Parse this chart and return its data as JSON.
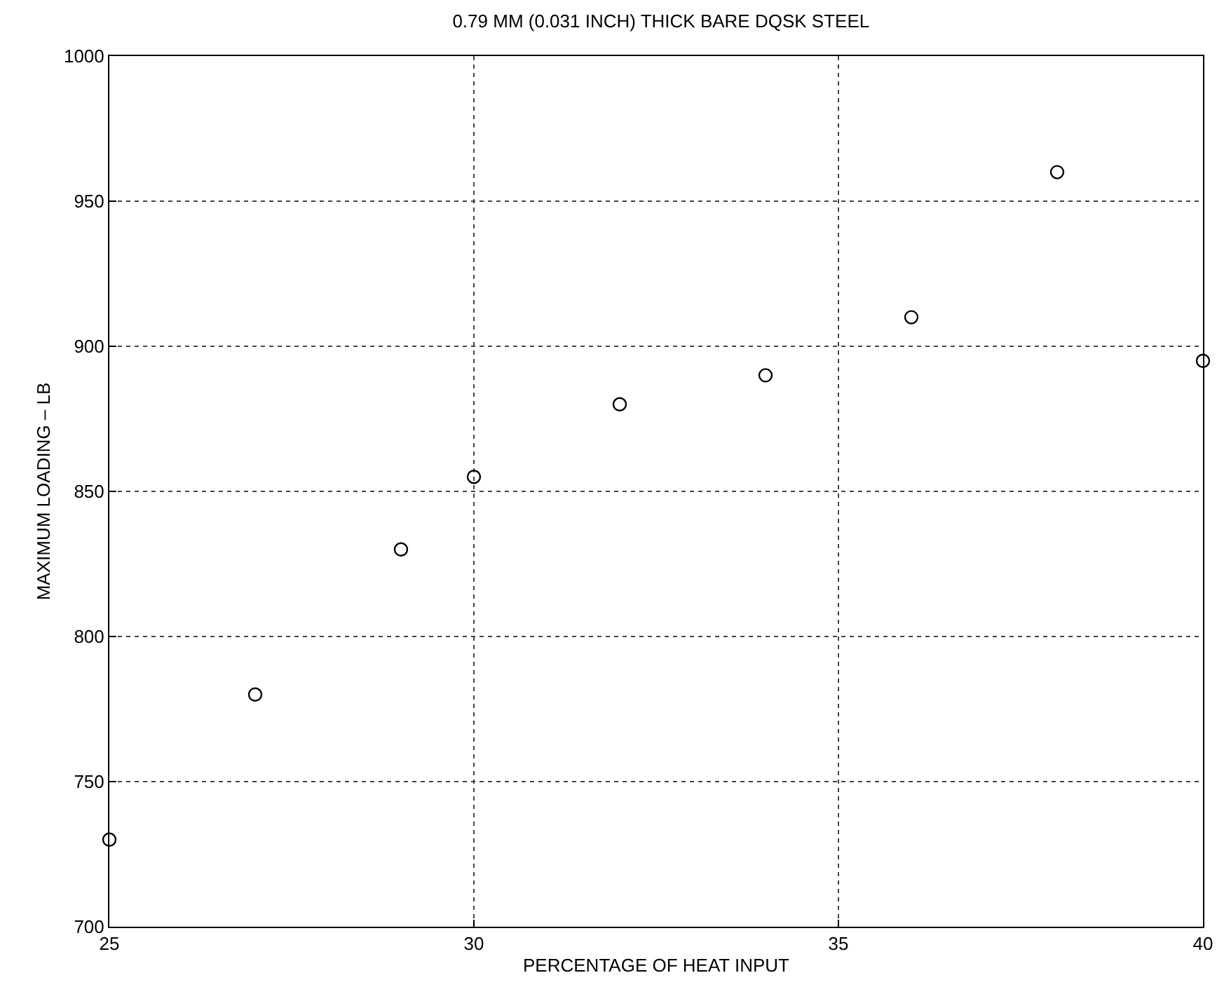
{
  "chart_data": {
    "type": "scatter",
    "title": "0.79 MM (0.031 INCH) THICK BARE DQSK STEEL",
    "xlabel": "PERCENTAGE OF HEAT INPUT",
    "ylabel": "MAXIMUM LOADING – LB",
    "x": [
      25,
      27,
      29,
      30,
      32,
      34,
      36,
      38,
      40
    ],
    "series": [
      {
        "color": "#000000",
        "values": [
          730,
          780,
          830,
          855,
          880,
          890,
          910,
          960,
          895
        ]
      }
    ],
    "xlim": [
      25,
      40
    ],
    "xticks": [
      25,
      30,
      35,
      40
    ],
    "ylim": [
      700,
      1000
    ],
    "yticks": [
      700,
      750,
      800,
      850,
      900,
      950,
      1000
    ],
    "grid": true,
    "marker": "circle"
  }
}
